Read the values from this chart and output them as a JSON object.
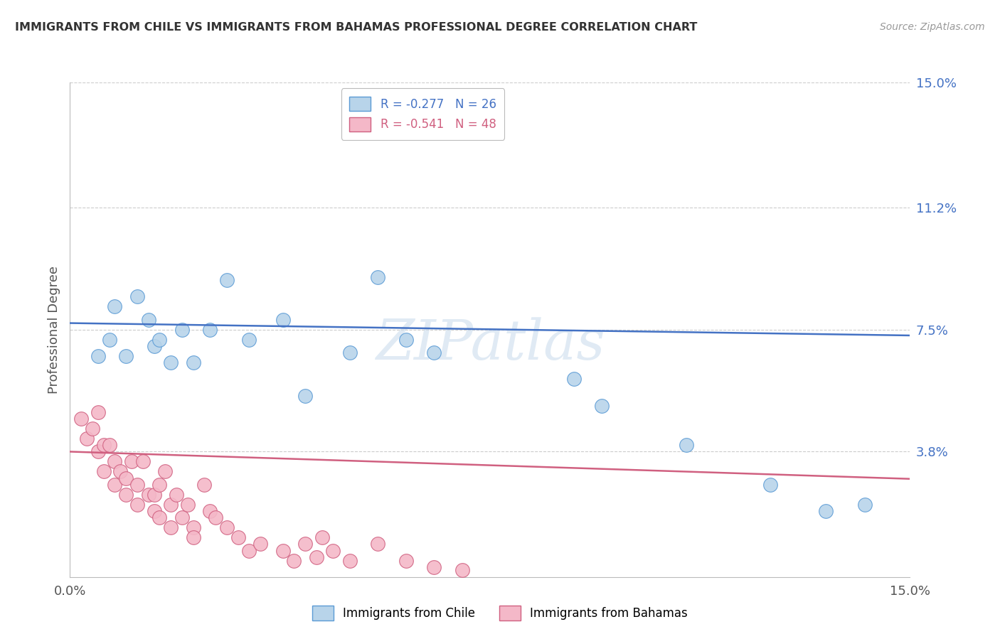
{
  "title": "IMMIGRANTS FROM CHILE VS IMMIGRANTS FROM BAHAMAS PROFESSIONAL DEGREE CORRELATION CHART",
  "source": "Source: ZipAtlas.com",
  "ylabel": "Professional Degree",
  "x_min": 0.0,
  "x_max": 0.15,
  "y_min": 0.0,
  "y_max": 0.15,
  "y_tick_labels_right": [
    "3.8%",
    "7.5%",
    "11.2%",
    "15.0%"
  ],
  "y_tick_vals_right": [
    0.038,
    0.075,
    0.112,
    0.15
  ],
  "legend_r1": "R = -0.277   N = 26",
  "legend_r2": "R = -0.541   N = 48",
  "chile_color": "#b8d4ea",
  "chile_edge": "#5b9bd5",
  "bahamas_color": "#f4b8c8",
  "bahamas_edge": "#d06080",
  "line_chile_color": "#4472c4",
  "line_bahamas_color": "#d06080",
  "watermark_text": "ZIPatlas",
  "chile_line_intercept": 0.077,
  "chile_line_slope": -0.025,
  "bahamas_line_intercept": 0.038,
  "bahamas_line_slope": -0.055,
  "chile_x": [
    0.005,
    0.007,
    0.008,
    0.01,
    0.012,
    0.014,
    0.015,
    0.016,
    0.018,
    0.02,
    0.022,
    0.025,
    0.028,
    0.032,
    0.038,
    0.042,
    0.05,
    0.055,
    0.06,
    0.065,
    0.09,
    0.095,
    0.11,
    0.125,
    0.135,
    0.142
  ],
  "chile_y": [
    0.067,
    0.072,
    0.082,
    0.067,
    0.085,
    0.078,
    0.07,
    0.072,
    0.065,
    0.075,
    0.065,
    0.075,
    0.09,
    0.072,
    0.078,
    0.055,
    0.068,
    0.091,
    0.072,
    0.068,
    0.06,
    0.052,
    0.04,
    0.028,
    0.02,
    0.022
  ],
  "bahamas_x": [
    0.002,
    0.003,
    0.004,
    0.005,
    0.005,
    0.006,
    0.006,
    0.007,
    0.008,
    0.008,
    0.009,
    0.01,
    0.01,
    0.011,
    0.012,
    0.012,
    0.013,
    0.014,
    0.015,
    0.015,
    0.016,
    0.016,
    0.017,
    0.018,
    0.018,
    0.019,
    0.02,
    0.021,
    0.022,
    0.022,
    0.024,
    0.025,
    0.026,
    0.028,
    0.03,
    0.032,
    0.034,
    0.038,
    0.04,
    0.042,
    0.044,
    0.045,
    0.047,
    0.05,
    0.055,
    0.06,
    0.065,
    0.07
  ],
  "bahamas_y": [
    0.048,
    0.042,
    0.045,
    0.05,
    0.038,
    0.04,
    0.032,
    0.04,
    0.035,
    0.028,
    0.032,
    0.03,
    0.025,
    0.035,
    0.028,
    0.022,
    0.035,
    0.025,
    0.025,
    0.02,
    0.028,
    0.018,
    0.032,
    0.022,
    0.015,
    0.025,
    0.018,
    0.022,
    0.015,
    0.012,
    0.028,
    0.02,
    0.018,
    0.015,
    0.012,
    0.008,
    0.01,
    0.008,
    0.005,
    0.01,
    0.006,
    0.012,
    0.008,
    0.005,
    0.01,
    0.005,
    0.003,
    0.002
  ]
}
